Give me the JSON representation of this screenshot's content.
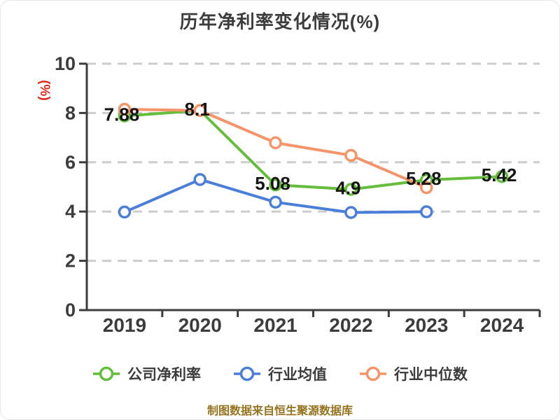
{
  "chart_data": {
    "type": "line",
    "title": "历年净利率变化情况(%)",
    "ylabel": "(%)",
    "footnote": "制图数据来自恒生聚源数据库",
    "categories": [
      "2019",
      "2020",
      "2021",
      "2022",
      "2023",
      "2024"
    ],
    "ylim": [
      0,
      10
    ],
    "yticks": [
      0,
      2,
      4,
      6,
      8,
      10
    ],
    "grid": "horizontal-dashed",
    "legend_position": "bottom",
    "series": [
      {
        "name": "公司净利率",
        "color": "#64BE3B",
        "values": [
          7.88,
          8.1,
          5.08,
          4.9,
          5.28,
          5.42
        ],
        "labels": [
          "7.88",
          "8.1",
          "5.08",
          "4.9",
          "5.28",
          "5.42"
        ]
      },
      {
        "name": "行业均值",
        "color": "#4B7ED8",
        "values": [
          3.98,
          5.3,
          4.38,
          3.96,
          3.99,
          null
        ],
        "labels": null
      },
      {
        "name": "行业中位数",
        "color": "#F49468",
        "values": [
          8.15,
          8.1,
          6.79,
          6.28,
          4.97,
          null
        ],
        "labels": null
      }
    ]
  },
  "style": {
    "title_color": "#3C3C3C",
    "axis_color": "#3C3C3C",
    "grid_color": "#CDCDCD",
    "tick_label_color": "#3C3C3C",
    "data_label_color": "#141414",
    "ylabel_color": "#E0281E",
    "footnote_color": "#96731E",
    "marker_fill": "#FFFFFF"
  }
}
